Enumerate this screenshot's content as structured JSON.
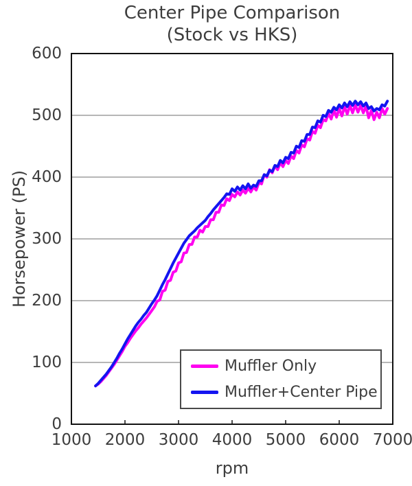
{
  "title": {
    "line1": "Center Pipe Comparison",
    "line2": "(Stock vs HKS)"
  },
  "axes": {
    "xlabel": "rpm",
    "ylabel": "Horsepower (PS)"
  },
  "colors": {
    "muffler_only": "#FF00F0",
    "muffler_center_pipe": "#1414F0",
    "text": "#3D3D3D",
    "axis": "#111111",
    "grid": "#6E6E6E",
    "legend_border": "#494949",
    "background": "#FFFFFF"
  },
  "chart_data": {
    "type": "line",
    "title": "Center Pipe Comparison (Stock vs HKS)",
    "xlabel": "rpm",
    "ylabel": "Horsepower (PS)",
    "xlim": [
      1000,
      7000
    ],
    "ylim": [
      0,
      600
    ],
    "x_ticks": [
      1000,
      2000,
      3000,
      4000,
      5000,
      6000,
      7000
    ],
    "y_ticks": [
      0,
      100,
      200,
      300,
      400,
      500,
      600
    ],
    "grid": "horizontal",
    "legend_position": "inside-bottom-right",
    "x": [
      1450,
      1500,
      1550,
      1600,
      1650,
      1700,
      1750,
      1800,
      1850,
      1900,
      1950,
      2000,
      2050,
      2100,
      2150,
      2200,
      2250,
      2300,
      2350,
      2400,
      2450,
      2500,
      2550,
      2600,
      2650,
      2700,
      2750,
      2800,
      2850,
      2900,
      2950,
      3000,
      3050,
      3100,
      3150,
      3200,
      3250,
      3300,
      3350,
      3400,
      3450,
      3500,
      3550,
      3600,
      3650,
      3700,
      3750,
      3800,
      3850,
      3900,
      3950,
      4000,
      4050,
      4100,
      4150,
      4200,
      4250,
      4300,
      4350,
      4400,
      4450,
      4500,
      4550,
      4600,
      4650,
      4700,
      4750,
      4800,
      4850,
      4900,
      4950,
      5000,
      5050,
      5100,
      5150,
      5200,
      5250,
      5300,
      5350,
      5400,
      5450,
      5500,
      5550,
      5600,
      5650,
      5700,
      5750,
      5800,
      5850,
      5900,
      5950,
      6000,
      6050,
      6100,
      6150,
      6200,
      6250,
      6300,
      6350,
      6400,
      6450,
      6500,
      6550,
      6600,
      6650,
      6700,
      6750,
      6800,
      6850,
      6900
    ],
    "series": [
      {
        "name": "Muffler Only",
        "color": "#FF00F0",
        "values": [
          62,
          65,
          69,
          74,
          79,
          85,
          91,
          97,
          104,
          111,
          118,
          126,
          132,
          139,
          145,
          151,
          156,
          162,
          167,
          172,
          178,
          184,
          190,
          199,
          201,
          215,
          217,
          231,
          233,
          246,
          248,
          261,
          263,
          277,
          278,
          291,
          291,
          303,
          303,
          314,
          311,
          320,
          320,
          331,
          331,
          343,
          343,
          355,
          354,
          365,
          362,
          372,
          368,
          376,
          371,
          379,
          374,
          382,
          376,
          384,
          379,
          391,
          389,
          404,
          400,
          412,
          407,
          418,
          412,
          423,
          417,
          427,
          422,
          434,
          430,
          443,
          439,
          452,
          449,
          462,
          460,
          474,
          471,
          484,
          480,
          493,
          491,
          503,
          494,
          509,
          497,
          511,
          499,
          514,
          502,
          516,
          504,
          517,
          505,
          516,
          504,
          515,
          496,
          508,
          493,
          505,
          496,
          511,
          502,
          511
        ]
      },
      {
        "name": "Muffler+Center Pipe",
        "color": "#1414F0",
        "values": [
          62,
          66,
          71,
          76,
          81,
          87,
          93,
          100,
          107,
          115,
          122,
          130,
          138,
          145,
          152,
          159,
          165,
          170,
          176,
          181,
          188,
          195,
          201,
          208,
          217,
          226,
          234,
          243,
          252,
          261,
          269,
          277,
          285,
          293,
          299,
          305,
          309,
          313,
          318,
          322,
          326,
          330,
          336,
          341,
          347,
          352,
          357,
          362,
          367,
          373,
          372,
          381,
          377,
          384,
          379,
          386,
          381,
          389,
          382,
          387,
          385,
          394,
          394,
          404,
          402,
          411,
          409,
          419,
          417,
          427,
          423,
          432,
          430,
          440,
          439,
          450,
          448,
          459,
          458,
          469,
          469,
          481,
          480,
          491,
          489,
          500,
          498,
          508,
          505,
          513,
          509,
          517,
          512,
          520,
          514,
          522,
          516,
          523,
          517,
          522,
          515,
          520,
          511,
          514,
          507,
          511,
          509,
          517,
          515,
          523
        ]
      }
    ]
  }
}
